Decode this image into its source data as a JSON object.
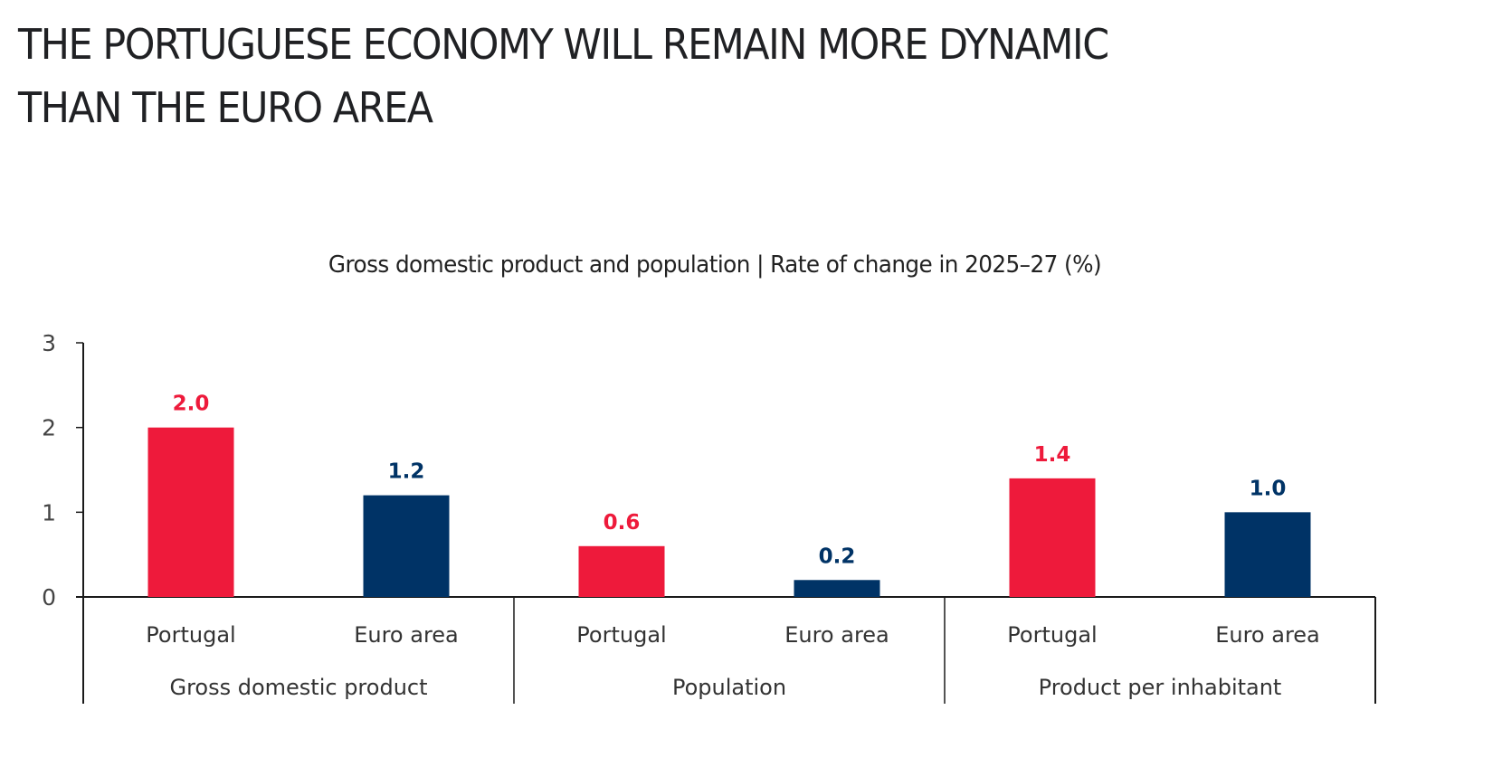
{
  "page": {
    "title_lines": [
      "THE PORTUGUESE ECONOMY WILL REMAIN MORE DYNAMIC",
      "THAN THE EURO AREA"
    ]
  },
  "colors": {
    "portugal": "#EE1A3B",
    "euro_area": "#003366",
    "axis": "#1a1a1a",
    "tick_text": "#444444"
  },
  "chart_data": {
    "type": "bar",
    "title": "Gross domestic product and population | Rate of change in 2025–27 (%)",
    "xlabel": "",
    "ylabel": "",
    "ylim": [
      0,
      3
    ],
    "yticks": [
      0,
      1,
      2,
      3
    ],
    "grid": false,
    "legend": "none",
    "groups": [
      {
        "name": "Gross domestic product",
        "bars": [
          {
            "category": "Portugal",
            "value": 2.0,
            "label": "2.0",
            "series": "portugal"
          },
          {
            "category": "Euro area",
            "value": 1.2,
            "label": "1.2",
            "series": "euro_area"
          }
        ]
      },
      {
        "name": "Population",
        "bars": [
          {
            "category": "Portugal",
            "value": 0.6,
            "label": "0.6",
            "series": "portugal"
          },
          {
            "category": "Euro area",
            "value": 0.2,
            "label": "0.2",
            "series": "euro_area"
          }
        ]
      },
      {
        "name": "Product per inhabitant",
        "bars": [
          {
            "category": "Portugal",
            "value": 1.4,
            "label": "1.4",
            "series": "portugal"
          },
          {
            "category": "Euro area",
            "value": 1.0,
            "label": "1.0",
            "series": "euro_area"
          }
        ]
      }
    ]
  }
}
